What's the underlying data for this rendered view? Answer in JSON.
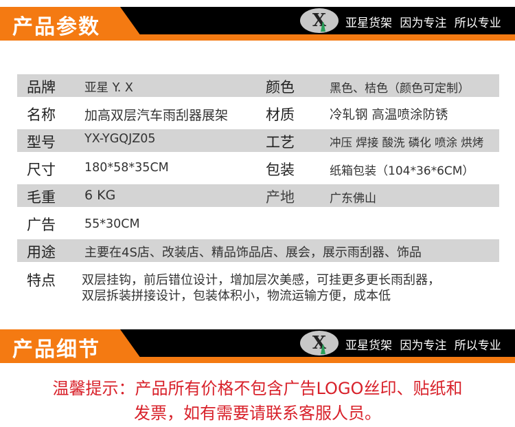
{
  "banner_top": {
    "title": "产品参数",
    "logo": "X",
    "slogan": "亚星货架 因为专注 所以专业"
  },
  "specs": [
    {
      "label": "品牌",
      "value": "亚星 Y. X",
      "label2": "颜色",
      "value2": "黑色、桔色（颜色可定制）"
    },
    {
      "label": "名称",
      "value": "加高双层汽车雨刮器展架",
      "label2": "材质",
      "value2": "冷轧钢  高温喷涂防锈"
    },
    {
      "label": "型号",
      "value": "YX-YGQJZ05",
      "label2": "工艺",
      "value2": "冲压 焊接 酸洗 磷化 喷涂 烘烤"
    },
    {
      "label": "尺寸",
      "value": "180*58*35CM",
      "label2": "包装",
      "value2": "纸箱包装（104*36*6CM）"
    },
    {
      "label": "毛重",
      "value": " 6 KG",
      "label2": "产地",
      "value2": "广东佛山"
    },
    {
      "label": "广告",
      "value": "55*30CM"
    },
    {
      "label": "用途",
      "value": "主要在4S店、改装店、精品饰品店、展会，展示雨刮器、饰品"
    },
    {
      "label": "特点",
      "value": "双层挂钩，前后错位设计，增加层次美感，可挂更多更长雨刮器，",
      "value_line2": "双层拆装拼接设计，包装体积小，物流运输方便，成本低"
    }
  ],
  "banner_bottom": {
    "title": "产品细节",
    "logo": "X",
    "slogan": "亚星货架 因为专注 所以专业"
  },
  "notice": {
    "line1": "温馨提示：产品所有价格不包含广告LOGO丝印、贴纸和",
    "line2": "发票，如有需要请联系客服人员。"
  },
  "colors": {
    "orange": "#f47a12",
    "black": "#000000",
    "row_gray": "#d4d4d4",
    "notice_red": "#d8212a"
  }
}
